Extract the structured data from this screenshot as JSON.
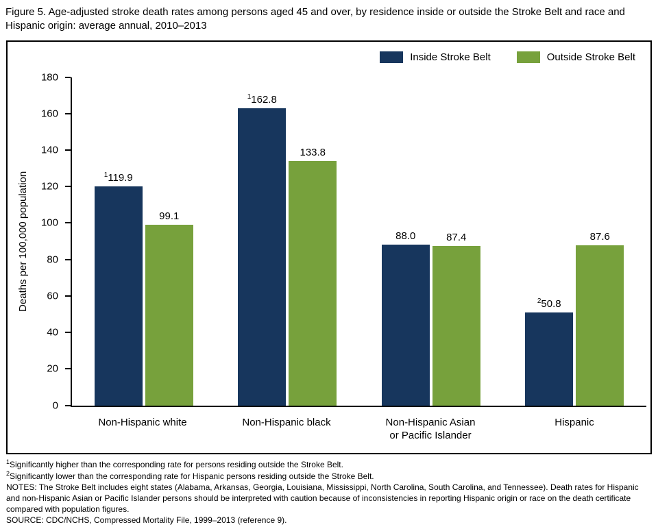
{
  "title": "Figure 5. Age-adjusted stroke death rates among persons aged 45 and over, by residence inside or outside the Stroke Belt and race and Hispanic origin: average annual, 2010–2013",
  "chart_data": {
    "type": "bar",
    "categories": [
      "Non-Hispanic white",
      "Non-Hispanic black",
      "Non-Hispanic Asian\nor Pacific Islander",
      "Hispanic"
    ],
    "series": [
      {
        "name": "Inside Stroke Belt",
        "color": "#17365d",
        "values": [
          119.9,
          162.8,
          88.0,
          50.8
        ],
        "labels": [
          "119.9",
          "162.8",
          "88.0",
          "50.8"
        ],
        "superscripts": [
          "1",
          "1",
          "",
          "2"
        ]
      },
      {
        "name": "Outside Stroke Belt",
        "color": "#77a13c",
        "values": [
          99.1,
          133.8,
          87.4,
          87.6
        ],
        "labels": [
          "99.1",
          "133.8",
          "87.4",
          "87.6"
        ],
        "superscripts": [
          "",
          "",
          "",
          ""
        ]
      }
    ],
    "title": "",
    "xlabel": "",
    "ylabel": "Deaths per 100,000 population",
    "ylim": [
      0,
      180
    ],
    "yticks": [
      0,
      20,
      40,
      60,
      80,
      100,
      120,
      140,
      160,
      180
    ],
    "grid": false,
    "legend_position": "top-right"
  },
  "footnotes": [
    {
      "sup": "1",
      "text": "Significantly higher than the corresponding rate for persons residing outside the Stroke Belt."
    },
    {
      "sup": "2",
      "text": "Significantly lower than the corresponding rate for Hispanic persons residing outside the Stroke Belt."
    },
    {
      "sup": "",
      "text": "NOTES: The Stroke Belt includes eight states (Alabama, Arkansas, Georgia, Louisiana, Mississippi, North Carolina, South Carolina, and Tennessee). Death rates for Hispanic and non-Hispanic Asian or Pacific Islander persons should be interpreted with caution because of inconsistencies in reporting Hispanic origin or race on the death certificate compared with population figures."
    },
    {
      "sup": "",
      "text": "SOURCE: CDC/NCHS, Compressed Mortality File, 1999–2013 (reference 9)."
    }
  ]
}
